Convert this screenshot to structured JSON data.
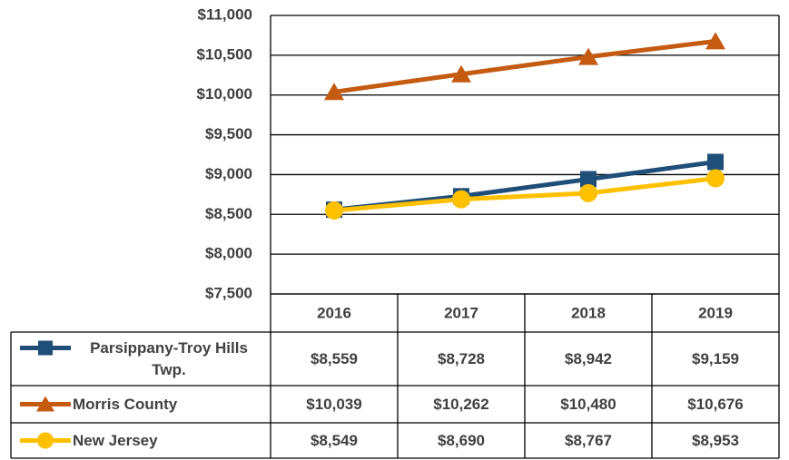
{
  "chart_data": {
    "type": "line",
    "categories": [
      "2016",
      "2017",
      "2018",
      "2019"
    ],
    "series": [
      {
        "name": "Parsippany-Troy Hills Twp.",
        "color": "#1f4e79",
        "marker": "square",
        "values": [
          8559,
          8728,
          8942,
          9159
        ],
        "value_labels": [
          "$8,559",
          "$8,728",
          "$8,942",
          "$9,159"
        ]
      },
      {
        "name": "Morris County",
        "color": "#c55a11",
        "marker": "triangle",
        "values": [
          10039,
          10262,
          10480,
          10676
        ],
        "value_labels": [
          "$10,039",
          "$10,262",
          "$10,480",
          "$10,676"
        ]
      },
      {
        "name": "New Jersey",
        "color": "#ffc000",
        "marker": "circle",
        "values": [
          8549,
          8690,
          8767,
          8953
        ],
        "value_labels": [
          "$8,549",
          "$8,690",
          "$8,767",
          "$8,953"
        ]
      }
    ],
    "ylim": [
      7500,
      11000
    ],
    "yticks": [
      {
        "value": 7500,
        "label": "$7,500"
      },
      {
        "value": 8000,
        "label": "$8,000"
      },
      {
        "value": 8500,
        "label": "$8,500"
      },
      {
        "value": 9000,
        "label": "$9,000"
      },
      {
        "value": 9500,
        "label": "$9,500"
      },
      {
        "value": 10000,
        "label": "$10,000"
      },
      {
        "value": 10500,
        "label": "$10,500"
      },
      {
        "value": 11000,
        "label": "$11,000"
      }
    ],
    "grid": true
  }
}
